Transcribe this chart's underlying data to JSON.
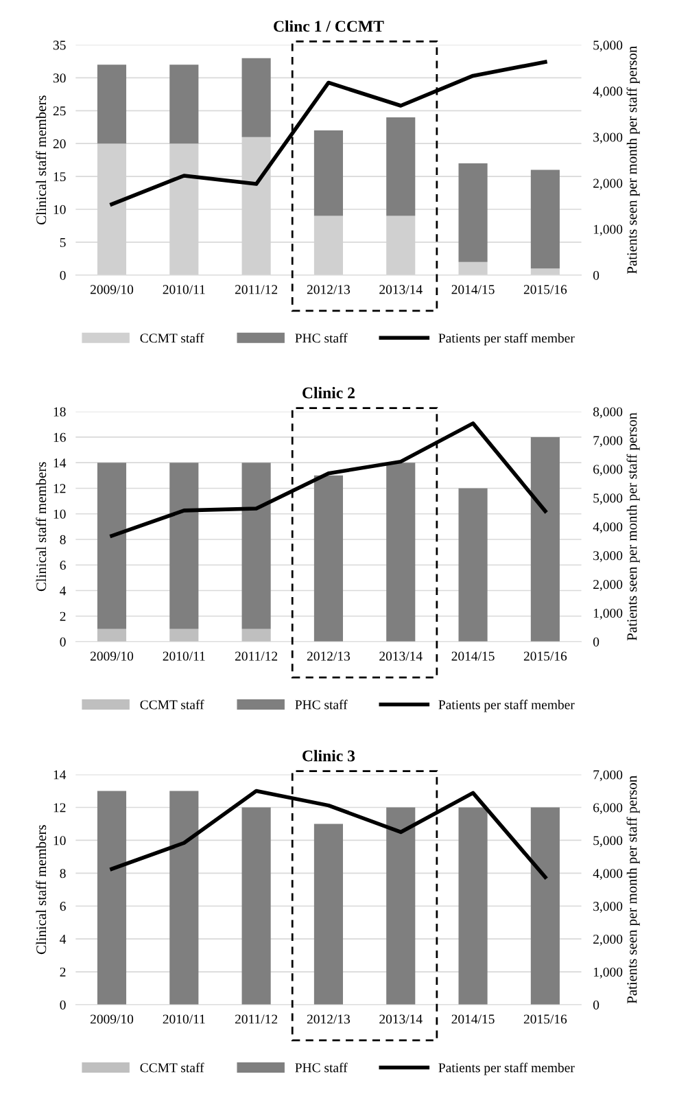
{
  "chart_data": [
    {
      "type": "bar",
      "title": "Clinc 1 / CCMT",
      "ylabel": "Clinical staff members",
      "y2label": "Patients seen per month per staff person",
      "stacked": true,
      "legend": "bottom",
      "grid": "y",
      "categories": [
        "2009/10",
        "2010/11",
        "2011/12",
        "2012/13",
        "2013/14",
        "2014/15",
        "2015/16"
      ],
      "series": [
        {
          "name": "CCMT staff",
          "color": "#d0d0d0",
          "values": [
            20,
            20,
            21,
            9,
            9,
            2,
            1
          ]
        },
        {
          "name": "PHC staff",
          "color": "#7f7f7f",
          "values": [
            12,
            12,
            12,
            13,
            15,
            15,
            15
          ]
        },
        {
          "name": "Patients per staff member",
          "type": "line",
          "axis": "y2",
          "color": "#000000",
          "values": [
            1540,
            2160,
            1980,
            4180,
            3680,
            4330,
            4630
          ]
        }
      ],
      "ylim": [
        0,
        35
      ],
      "yticks": [
        0,
        5,
        10,
        15,
        20,
        25,
        30,
        35
      ],
      "y2lim": [
        0,
        5000
      ],
      "y2ticks": [
        0,
        {
          "value": 1000,
          "label": "1,000"
        },
        {
          "value": 2000,
          "label": "2,000"
        },
        {
          "value": 3000,
          "label": "3,000"
        },
        {
          "value": 4000,
          "label": "4,000"
        },
        {
          "value": 5000,
          "label": "5,000"
        }
      ]
    },
    {
      "type": "bar",
      "title": "Clinic 2",
      "ylabel": "Clinical staff members",
      "y2label": "Patients seen per month per staff person",
      "stacked": true,
      "legend": "bottom",
      "grid": "y",
      "categories": [
        "2009/10",
        "2010/11",
        "2011/12",
        "2012/13",
        "2013/14",
        "2014/15",
        "2015/16"
      ],
      "series": [
        {
          "name": "CCMT staff",
          "color": "#bfbfbf",
          "values": [
            1,
            1,
            1,
            0,
            0,
            0,
            0
          ]
        },
        {
          "name": "PHC staff",
          "color": "#7f7f7f",
          "values": [
            13,
            13,
            13,
            13,
            14,
            12,
            16
          ]
        },
        {
          "name": "Patients per staff member",
          "type": "line",
          "axis": "y2",
          "color": "#000000",
          "values": [
            3680,
            4560,
            4630,
            5850,
            6260,
            7590,
            4540
          ]
        }
      ],
      "ylim": [
        0,
        18
      ],
      "yticks": [
        0,
        2,
        4,
        6,
        8,
        10,
        12,
        14,
        16,
        18
      ],
      "y2lim": [
        0,
        8000
      ],
      "y2ticks": [
        0,
        {
          "value": 1000,
          "label": "1,000"
        },
        {
          "value": 2000,
          "label": "2,000"
        },
        {
          "value": 3000,
          "label": "3,000"
        },
        {
          "value": 4000,
          "label": "4,000"
        },
        {
          "value": 5000,
          "label": "5,000"
        },
        {
          "value": 6000,
          "label": "6,000"
        },
        {
          "value": 7000,
          "label": "7,000"
        },
        {
          "value": 8000,
          "label": "8,000"
        }
      ]
    },
    {
      "type": "bar",
      "title": "Clinic 3",
      "ylabel": "Clinical staff members",
      "y2label": "Patients seen per month per staff person",
      "stacked": true,
      "legend": "bottom",
      "grid": "y",
      "categories": [
        "2009/10",
        "2010/11",
        "2011/12",
        "2012/13",
        "2013/14",
        "2014/15",
        "2015/16"
      ],
      "series": [
        {
          "name": "CCMT staff",
          "color": "#bfbfbf",
          "values": [
            0,
            0,
            0,
            0,
            0,
            0,
            0
          ]
        },
        {
          "name": "PHC staff",
          "color": "#7f7f7f",
          "values": [
            13,
            13,
            12,
            11,
            12,
            12,
            12
          ]
        },
        {
          "name": "Patients per staff member",
          "type": "line",
          "axis": "y2",
          "color": "#000000",
          "values": [
            4130,
            4920,
            6500,
            6060,
            5250,
            6440,
            3880
          ]
        }
      ],
      "ylim": [
        0,
        14
      ],
      "yticks": [
        0,
        2,
        4,
        6,
        8,
        10,
        12,
        14
      ],
      "y2lim": [
        0,
        7000
      ],
      "y2ticks": [
        0,
        {
          "value": 1000,
          "label": "1,000"
        },
        {
          "value": 2000,
          "label": "2,000"
        },
        {
          "value": 3000,
          "label": "3,000"
        },
        {
          "value": 4000,
          "label": "4,000"
        },
        {
          "value": 5000,
          "label": "5,000"
        },
        {
          "value": 6000,
          "label": "6,000"
        },
        {
          "value": 7000,
          "label": "7,000"
        }
      ]
    }
  ]
}
